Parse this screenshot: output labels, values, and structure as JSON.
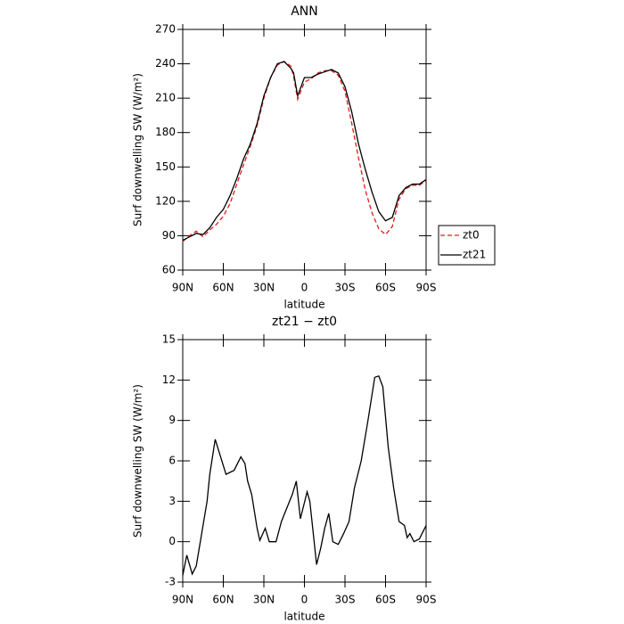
{
  "chart_data": [
    {
      "type": "line",
      "title": "ANN",
      "xlabel": "latitude",
      "ylabel": "Surf downwelling SW (W/m²)",
      "x": [
        90,
        85,
        80,
        75,
        70,
        65,
        60,
        55,
        50,
        45,
        40,
        35,
        30,
        25,
        20,
        15,
        10,
        8,
        5,
        0,
        -5,
        -10,
        -15,
        -20,
        -25,
        -30,
        -35,
        -40,
        -45,
        -50,
        -55,
        -60,
        -65,
        -70,
        -75,
        -80,
        -85,
        -90
      ],
      "series": [
        {
          "name": "zt0",
          "color": "#e41a1c",
          "linestyle": "dashed",
          "values": [
            85,
            90,
            94,
            89,
            95,
            100,
            107,
            118,
            135,
            152,
            168,
            186,
            210,
            228,
            239,
            242,
            238,
            229,
            209,
            224,
            227,
            232,
            234,
            234,
            230,
            216,
            188,
            158,
            130,
            110,
            96,
            91,
            98,
            122,
            131,
            134,
            134,
            138
          ]
        },
        {
          "name": "zt21",
          "color": "#000000",
          "linestyle": "solid",
          "values": [
            86,
            89,
            92,
            91,
            97,
            106,
            113,
            125,
            140,
            157,
            170,
            188,
            212,
            228,
            240,
            242,
            236,
            232,
            212,
            228,
            228,
            231,
            233,
            235,
            232,
            220,
            198,
            170,
            148,
            128,
            111,
            103,
            106,
            125,
            132,
            135,
            135,
            139
          ]
        }
      ],
      "xlim": [
        90,
        -90
      ],
      "xticks": [
        {
          "value": 90,
          "label": "90N"
        },
        {
          "value": 60,
          "label": "60N"
        },
        {
          "value": 30,
          "label": "30N"
        },
        0,
        {
          "value": -30,
          "label": "30S"
        },
        {
          "value": -60,
          "label": "60S"
        },
        {
          "value": -90,
          "label": "90S"
        }
      ],
      "ylim": [
        60,
        270
      ],
      "yticks": [
        60,
        90,
        120,
        150,
        180,
        210,
        240,
        270
      ],
      "legend": "outside-right"
    },
    {
      "type": "line",
      "title": "zt21 − zt0",
      "xlabel": "latitude",
      "ylabel": "Surf downwelling SW (W/m²)",
      "x": [
        90,
        87,
        83,
        80,
        72,
        70,
        66,
        62,
        58,
        52,
        47,
        44,
        42,
        39,
        35,
        33,
        29,
        26,
        21,
        17,
        13,
        9,
        6,
        3,
        -2,
        -4,
        -9,
        -12,
        -15,
        -18,
        -21,
        -25,
        -29,
        -33,
        -37,
        -42,
        -47,
        -52,
        -55,
        -58,
        -62,
        -66,
        -70,
        -74,
        -76,
        -78,
        -81,
        -85,
        -87,
        -90
      ],
      "series": [
        {
          "color": "#000000",
          "linestyle": "solid",
          "values": [
            -2.5,
            -1,
            -2.4,
            -1.8,
            3,
            5,
            7.6,
            6.3,
            5,
            5.3,
            6.3,
            5.8,
            4.5,
            3.5,
            1,
            0.1,
            1,
            0,
            0,
            1.5,
            2.5,
            3.5,
            4.5,
            1.7,
            3.7,
            3,
            -1.7,
            -0.5,
            1,
            2.1,
            0,
            -0.2,
            0.6,
            1.5,
            4,
            6,
            9,
            12.2,
            12.3,
            11.5,
            7,
            4,
            1.5,
            1.2,
            0.3,
            0.6,
            0,
            0.2,
            0.6,
            1.2
          ]
        }
      ],
      "xlim": [
        90,
        -90
      ],
      "xticks": [
        {
          "value": 90,
          "label": "90N"
        },
        {
          "value": 60,
          "label": "60N"
        },
        {
          "value": 30,
          "label": "30N"
        },
        0,
        {
          "value": -30,
          "label": "30S"
        },
        {
          "value": -60,
          "label": "60S"
        },
        {
          "value": -90,
          "label": "90S"
        }
      ],
      "ylim": [
        -3,
        15
      ],
      "yticks": [
        -3,
        0,
        3,
        6,
        9,
        12,
        15
      ]
    }
  ]
}
